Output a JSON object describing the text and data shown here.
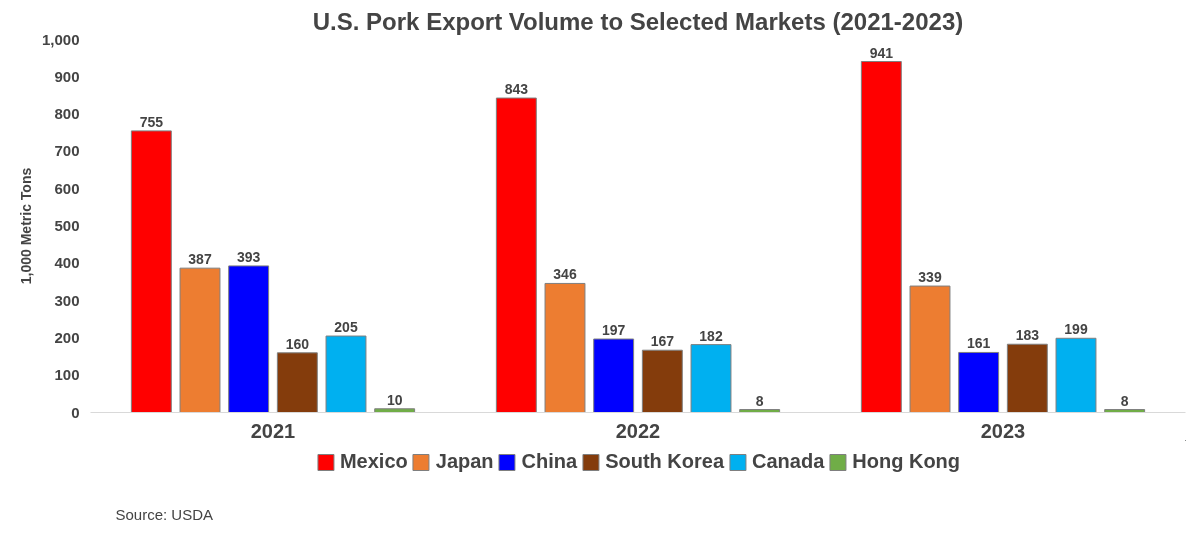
{
  "chart_data": {
    "type": "bar",
    "title": "U.S. Pork Export Volume to Selected Markets (2021-2023)",
    "ylabel": "1,000 Metric Tons",
    "categories": [
      "2021",
      "2022",
      "2023"
    ],
    "series": [
      {
        "name": "Mexico",
        "color": "#ff0000",
        "values": [
          755,
          843,
          941
        ]
      },
      {
        "name": "Japan",
        "color": "#ed7d31",
        "values": [
          387,
          346,
          339
        ]
      },
      {
        "name": "China",
        "color": "#0000ff",
        "values": [
          393,
          197,
          161
        ]
      },
      {
        "name": "South Korea",
        "color": "#843c0c",
        "values": [
          160,
          167,
          183
        ]
      },
      {
        "name": "Canada",
        "color": "#00b0f0",
        "values": [
          205,
          182,
          199
        ]
      },
      {
        "name": "Hong Kong",
        "color": "#70ad47",
        "values": [
          10,
          8,
          8
        ]
      }
    ],
    "ylim": [
      0,
      1000
    ],
    "yticks": [
      {
        "value": 0,
        "label": "0"
      },
      {
        "value": 100,
        "label": "100"
      },
      {
        "value": 200,
        "label": "200"
      },
      {
        "value": 300,
        "label": "300"
      },
      {
        "value": 400,
        "label": "400"
      },
      {
        "value": 500,
        "label": "500"
      },
      {
        "value": 600,
        "label": "600"
      },
      {
        "value": 700,
        "label": "700"
      },
      {
        "value": 800,
        "label": "800"
      },
      {
        "value": 900,
        "label": "900"
      },
      {
        "value": 1000,
        "label": "1,000"
      }
    ],
    "grid": false,
    "legend": "bottom",
    "data_labels": true,
    "annotations": [
      "Source: USDA"
    ]
  }
}
